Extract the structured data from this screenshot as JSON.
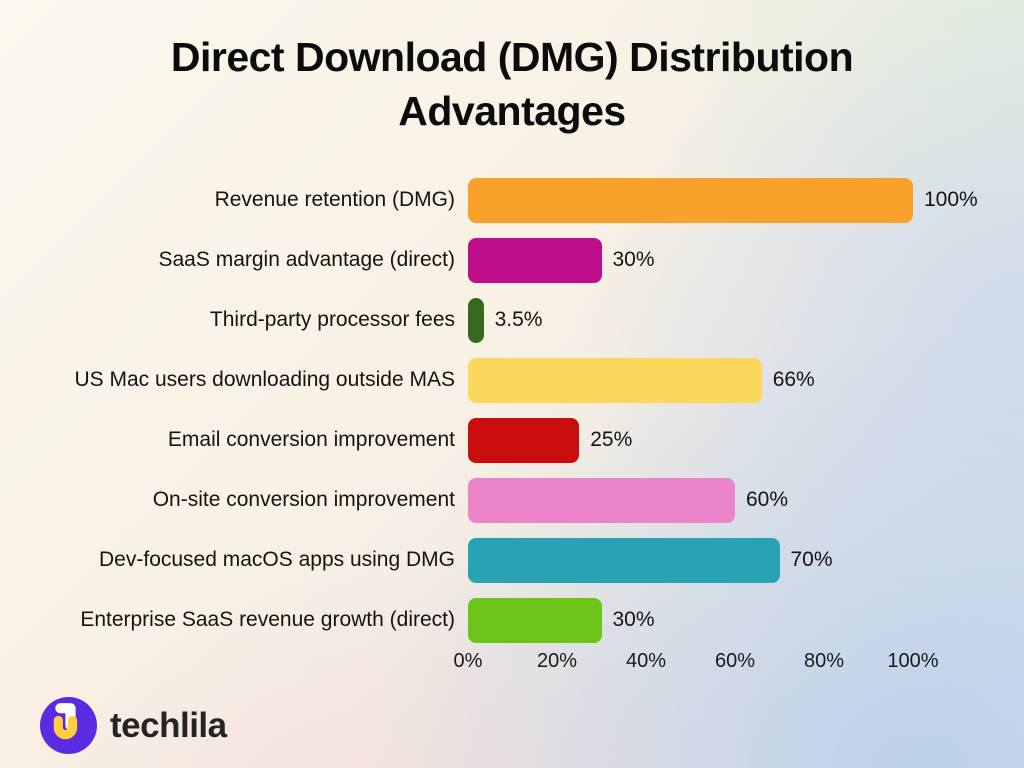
{
  "title": {
    "lines": [
      "Direct Download (DMG) Distribution",
      "Advantages"
    ]
  },
  "brand": {
    "name": "techlila",
    "logo_purple": "#5B2BE1",
    "logo_yellow": "#FFCE3F",
    "logo_white": "#FFFFFF"
  },
  "background_colors": {
    "top_left_cream": "#FBF8ED",
    "top_right_green": "#E7EFE3",
    "bottom_middle_pink": "#F6E0DA",
    "right_blue": "#C6D8EE"
  },
  "chart_data": {
    "type": "bar",
    "orientation": "horizontal",
    "title": "Direct Download (DMG) Distribution Advantages",
    "categories": [
      "Revenue retention (DMG)",
      "SaaS margin advantage (direct)",
      "Third-party processor fees",
      "US Mac users downloading outside MAS",
      "Email conversion improvement",
      "On-site conversion improvement",
      "Dev-focused macOS apps using DMG",
      "Enterprise SaaS revenue growth (direct)"
    ],
    "values": [
      100,
      30,
      3.5,
      66,
      25,
      60,
      70,
      30
    ],
    "value_labels": [
      "100%",
      "30%",
      "3.5%",
      "66%",
      "25%",
      "60%",
      "70%",
      "30%"
    ],
    "bar_colors": [
      "#F9A22B",
      "#BE0D88",
      "#39691F",
      "#FBD85C",
      "#C90D0D",
      "#EC84CA",
      "#29A3B3",
      "#6CC41A"
    ],
    "xlabel": "",
    "ylabel": "",
    "xlim": [
      0,
      100
    ],
    "x_ticks": [
      "0%",
      "20%",
      "40%",
      "60%",
      "80%",
      "100%"
    ],
    "grid": false,
    "legend": false,
    "value_labels_position": "right-of-bar"
  }
}
